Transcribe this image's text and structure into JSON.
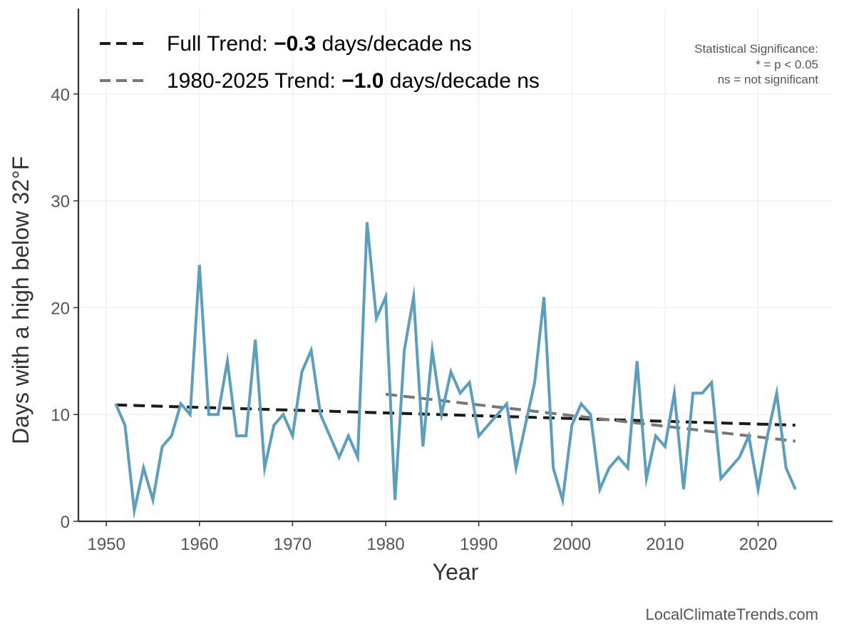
{
  "chart_data": {
    "type": "line",
    "xlabel": "Year",
    "ylabel": "Days with a high below 32°F",
    "xlim": [
      1947,
      2028
    ],
    "ylim": [
      0,
      48
    ],
    "xticks": [
      1950,
      1960,
      1970,
      1980,
      1990,
      2000,
      2010,
      2020
    ],
    "yticks": [
      0,
      10,
      20,
      30,
      40
    ],
    "grid": true,
    "legend_position": "top-left",
    "series": [
      {
        "color": "#5b9fbe",
        "x": [
          1951,
          1952,
          1953,
          1954,
          1955,
          1956,
          1957,
          1958,
          1959,
          1960,
          1961,
          1962,
          1963,
          1964,
          1965,
          1966,
          1967,
          1968,
          1969,
          1970,
          1971,
          1972,
          1973,
          1974,
          1975,
          1976,
          1977,
          1978,
          1979,
          1980,
          1981,
          1982,
          1983,
          1984,
          1985,
          1986,
          1987,
          1988,
          1989,
          1990,
          1991,
          1992,
          1993,
          1994,
          1995,
          1996,
          1997,
          1998,
          1999,
          2000,
          2001,
          2002,
          2003,
          2004,
          2005,
          2006,
          2007,
          2008,
          2009,
          2010,
          2011,
          2012,
          2013,
          2014,
          2015,
          2016,
          2017,
          2018,
          2019,
          2020,
          2021,
          2022,
          2023,
          2024
        ],
        "y": [
          11,
          9,
          1,
          5,
          2,
          7,
          8,
          11,
          10,
          24,
          10,
          10,
          15,
          8,
          8,
          17,
          5,
          9,
          10,
          8,
          14,
          16,
          10,
          8,
          6,
          8,
          6,
          28,
          19,
          21,
          2,
          16,
          21,
          7,
          16,
          10,
          14,
          12,
          13,
          8,
          9,
          10,
          11,
          5,
          9,
          13,
          21,
          5,
          2,
          9,
          11,
          10,
          3,
          5,
          6,
          5,
          15,
          4,
          8,
          7,
          12,
          3,
          12,
          12,
          13,
          4,
          5,
          6,
          8,
          3,
          8,
          12,
          5,
          3
        ]
      }
    ],
    "trend_lines": [
      {
        "x": [
          1951,
          2024
        ],
        "y": [
          10.9,
          9.0
        ],
        "color": "#1a1a1a"
      },
      {
        "x": [
          1980,
          2024
        ],
        "y": [
          11.9,
          7.5
        ],
        "color": "#777777"
      }
    ]
  },
  "legend": {
    "full": {
      "prefix": "Full Trend: ",
      "value": "−0.3",
      "suffix": " days/decade ns"
    },
    "recent": {
      "prefix": "1980-2025 Trend: ",
      "value": "−1.0",
      "suffix": " days/decade ns"
    }
  },
  "significance": {
    "line1": "Statistical Significance:",
    "line2": "* = p < 0.05",
    "line3": "ns = not significant"
  },
  "credit": "LocalClimateTrends.com",
  "colors": {
    "series": "#5b9fbe",
    "full_trend": "#1a1a1a",
    "recent_trend": "#777777",
    "axis": "#333333",
    "grid": "#ebebeb"
  }
}
